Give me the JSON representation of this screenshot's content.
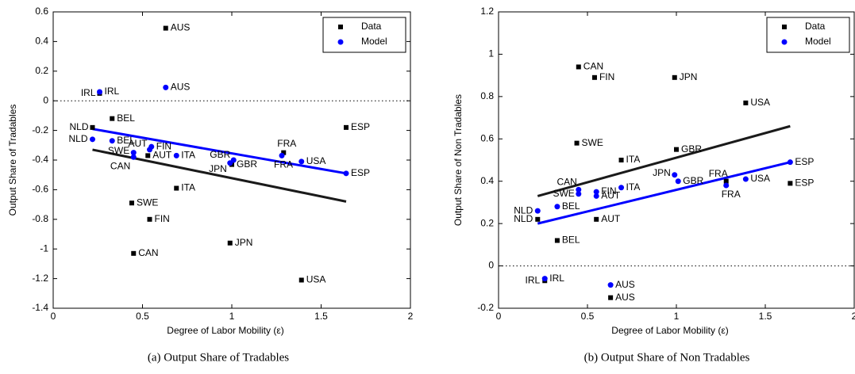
{
  "chart_data": [
    {
      "type": "scatter",
      "caption": "(a) Output Share of Tradables",
      "x_label": "Degree of Labor Mobility (ε)",
      "y_label": "Output Share of Tradables",
      "xlim": [
        0,
        2
      ],
      "xticks": [
        0,
        0.5,
        1,
        1.5,
        2
      ],
      "ylim": [
        -1.4,
        0.6
      ],
      "yticks": [
        -1.4,
        -1.2,
        -1,
        -0.8,
        -0.6,
        -0.4,
        -0.2,
        0,
        0.2,
        0.4,
        0.6
      ],
      "reference_line": 0,
      "legend": "upper right",
      "series": [
        {
          "name": "Data",
          "color": "#000000",
          "marker": "square",
          "labels": [
            "AUS",
            "BEL",
            "NLD",
            "ESP",
            "FRA",
            "GBR",
            "AUT",
            "ITA",
            "SWE",
            "FIN",
            "JPN",
            "CAN",
            "USA",
            "IRL"
          ],
          "x": [
            0.63,
            0.33,
            0.22,
            1.64,
            1.29,
            1.0,
            0.53,
            0.69,
            0.44,
            0.54,
            0.99,
            0.45,
            1.39,
            0.26
          ],
          "values": [
            0.49,
            -0.12,
            -0.18,
            -0.18,
            -0.35,
            -0.43,
            -0.37,
            -0.59,
            -0.69,
            -0.8,
            -0.96,
            -1.03,
            -1.21,
            0.05
          ]
        },
        {
          "name": "Model",
          "color": "#0000ff",
          "marker": "circle",
          "labels": [
            "AUS",
            "IRL",
            "BEL",
            "NLD",
            "AUT",
            "FIN",
            "SWE",
            "CAN",
            "ITA",
            "GBR",
            "JPN",
            "FRA",
            "USA",
            "ESP"
          ],
          "x": [
            0.63,
            0.26,
            0.33,
            0.22,
            0.54,
            0.55,
            0.45,
            0.45,
            0.69,
            1.01,
            0.99,
            1.28,
            1.39,
            1.64
          ],
          "values": [
            0.09,
            0.06,
            -0.27,
            -0.26,
            -0.33,
            -0.31,
            -0.35,
            -0.38,
            -0.37,
            -0.4,
            -0.42,
            -0.37,
            -0.41,
            -0.49
          ]
        }
      ],
      "fit_lines": [
        {
          "color": "#1a1a1a",
          "x": [
            0.22,
            1.64
          ],
          "values": [
            -0.33,
            -0.68
          ]
        },
        {
          "color": "#0000ff",
          "x": [
            0.22,
            1.64
          ],
          "values": [
            -0.19,
            -0.49
          ]
        }
      ]
    },
    {
      "type": "scatter",
      "caption": "(b) Output Share of Non Tradables",
      "x_label": "Degree of Labor Mobility (ε)",
      "y_label": "Output Share of Non Tradables",
      "xlim": [
        0,
        2
      ],
      "xticks": [
        0,
        0.5,
        1,
        1.5,
        2
      ],
      "ylim": [
        -0.2,
        1.2
      ],
      "yticks": [
        -0.2,
        0,
        0.2,
        0.4,
        0.6,
        0.8,
        1,
        1.2
      ],
      "reference_line": 0,
      "legend": "upper right",
      "series": [
        {
          "name": "Data",
          "color": "#000000",
          "marker": "square",
          "labels": [
            "CAN",
            "FIN",
            "JPN",
            "USA",
            "SWE",
            "GBR",
            "ITA",
            "FRA",
            "ESP",
            "NLD",
            "AUT",
            "BEL",
            "IRL",
            "AUS"
          ],
          "x": [
            0.45,
            0.54,
            0.99,
            1.39,
            0.44,
            1.0,
            0.69,
            1.28,
            1.64,
            0.22,
            0.55,
            0.33,
            0.26,
            0.63
          ],
          "values": [
            0.94,
            0.89,
            0.89,
            0.77,
            0.58,
            0.55,
            0.5,
            0.4,
            0.39,
            0.22,
            0.22,
            0.12,
            -0.07,
            -0.15
          ]
        },
        {
          "name": "Model",
          "color": "#0000ff",
          "marker": "circle",
          "labels": [
            "ESP",
            "JPN",
            "GBR",
            "USA",
            "FRA",
            "CAN",
            "SWE",
            "FIN",
            "AUT",
            "ITA",
            "NLD",
            "BEL",
            "IRL",
            "AUS"
          ],
          "x": [
            1.64,
            0.99,
            1.01,
            1.39,
            1.28,
            0.45,
            0.45,
            0.55,
            0.55,
            0.69,
            0.22,
            0.33,
            0.26,
            0.63
          ],
          "values": [
            0.49,
            0.43,
            0.4,
            0.41,
            0.38,
            0.36,
            0.34,
            0.35,
            0.33,
            0.37,
            0.26,
            0.28,
            -0.06,
            -0.09
          ]
        }
      ],
      "fit_lines": [
        {
          "color": "#1a1a1a",
          "x": [
            0.22,
            1.64
          ],
          "values": [
            0.33,
            0.66
          ]
        },
        {
          "color": "#0000ff",
          "x": [
            0.22,
            1.64
          ],
          "values": [
            0.2,
            0.49
          ]
        }
      ]
    }
  ]
}
